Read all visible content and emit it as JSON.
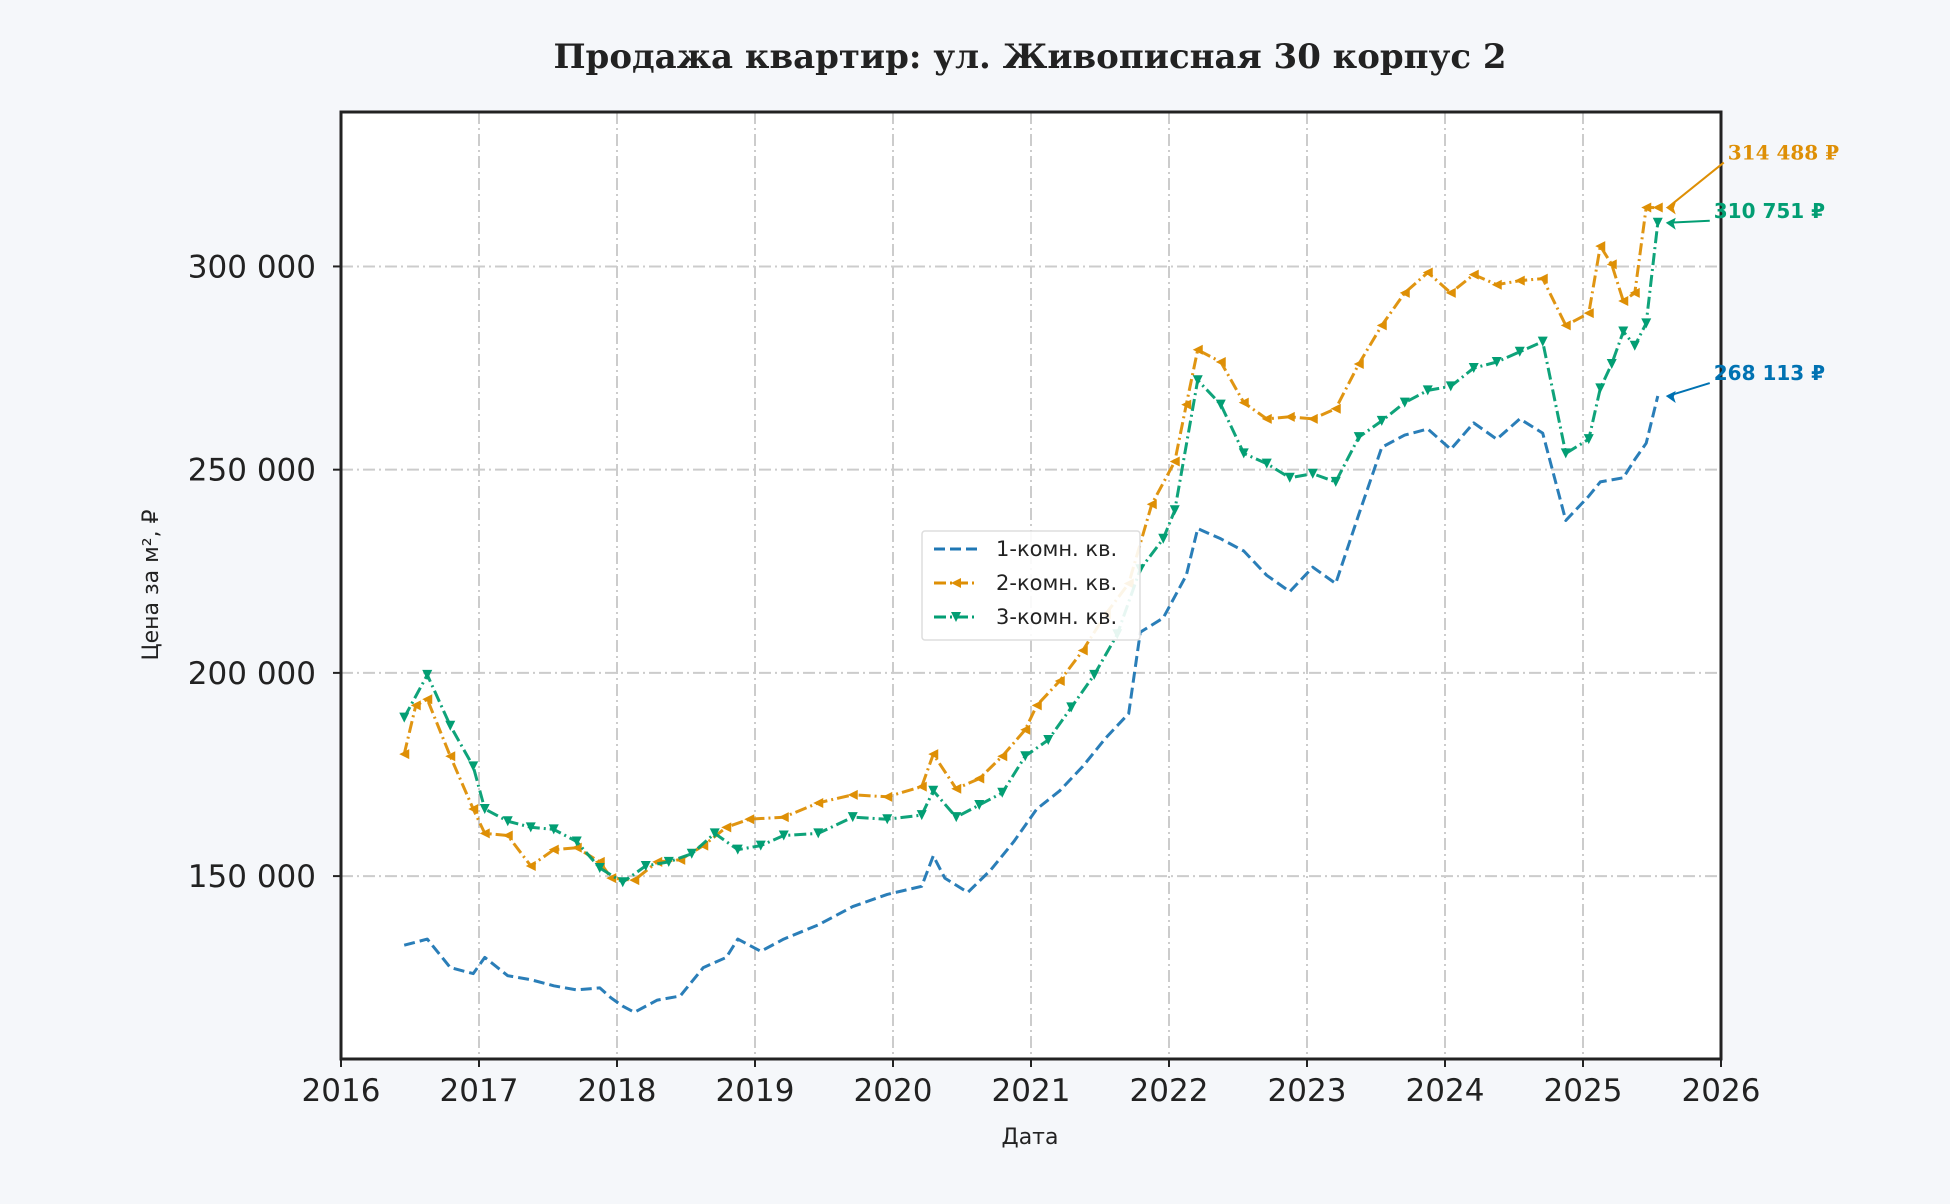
{
  "chart_data": {
    "type": "line",
    "title": "Продажа квартир: ул. Живописная 30 корпус 2",
    "xlabel": "Дата",
    "ylabel": "Цена за м², ₽",
    "xlim": [
      2016,
      2026
    ],
    "ylim": [
      105000,
      338000
    ],
    "x_ticks": [
      "2016",
      "2017",
      "2018",
      "2019",
      "2020",
      "2021",
      "2022",
      "2023",
      "2024",
      "2025",
      "2026"
    ],
    "y_ticks": [
      {
        "value": 150000,
        "label": "150 000"
      },
      {
        "value": 200000,
        "label": "200 000"
      },
      {
        "value": 250000,
        "label": "250 000"
      },
      {
        "value": 300000,
        "label": "300 000"
      }
    ],
    "grid": true,
    "legend_position": "center",
    "series": [
      {
        "name": "1-комн. кв.",
        "color": "#1f77b4",
        "line_style": "dashed",
        "marker": "none",
        "points": [
          [
            "2016-06",
            133000
          ],
          [
            "2016-08",
            134500
          ],
          [
            "2016-10",
            127500
          ],
          [
            "2016-12",
            126000
          ],
          [
            "2017-01",
            130000
          ],
          [
            "2017-03",
            125500
          ],
          [
            "2017-05",
            124500
          ],
          [
            "2017-07",
            123000
          ],
          [
            "2017-09",
            122000
          ],
          [
            "2017-11",
            122500
          ],
          [
            "2017-12",
            120000
          ],
          [
            "2018-01",
            118000
          ],
          [
            "2018-02",
            116500
          ],
          [
            "2018-04",
            119500
          ],
          [
            "2018-06",
            120500
          ],
          [
            "2018-08",
            127500
          ],
          [
            "2018-10",
            130000
          ],
          [
            "2018-11",
            134500
          ],
          [
            "2019-01",
            131500
          ],
          [
            "2019-03",
            134500
          ],
          [
            "2019-06",
            138000
          ],
          [
            "2019-09",
            142500
          ],
          [
            "2019-12",
            145500
          ],
          [
            "2020-03",
            147500
          ],
          [
            "2020-04",
            155000
          ],
          [
            "2020-05",
            149500
          ],
          [
            "2020-07",
            146000
          ],
          [
            "2020-09",
            151500
          ],
          [
            "2020-11",
            158500
          ],
          [
            "2021-01",
            166500
          ],
          [
            "2021-03",
            171000
          ],
          [
            "2021-05",
            177000
          ],
          [
            "2021-07",
            184000
          ],
          [
            "2021-09",
            190000
          ],
          [
            "2021-10",
            210000
          ],
          [
            "2021-12",
            213500
          ],
          [
            "2022-02",
            224000
          ],
          [
            "2022-03",
            235500
          ],
          [
            "2022-05",
            233000
          ],
          [
            "2022-07",
            230000
          ],
          [
            "2022-09",
            224000
          ],
          [
            "2022-11",
            220000
          ],
          [
            "2023-01",
            226000
          ],
          [
            "2023-03",
            222000
          ],
          [
            "2023-05",
            239000
          ],
          [
            "2023-07",
            255500
          ],
          [
            "2023-09",
            258500
          ],
          [
            "2023-11",
            260000
          ],
          [
            "2024-01",
            255000
          ],
          [
            "2024-03",
            261500
          ],
          [
            "2024-05",
            257500
          ],
          [
            "2024-07",
            262500
          ],
          [
            "2024-09",
            259000
          ],
          [
            "2024-11",
            237500
          ],
          [
            "2025-01",
            243500
          ],
          [
            "2025-02",
            247000
          ],
          [
            "2025-04",
            248000
          ],
          [
            "2025-05",
            252500
          ],
          [
            "2025-06",
            256500
          ],
          [
            "2025-07",
            268113
          ]
        ]
      },
      {
        "name": "2-комн. кв.",
        "color": "#de8f05",
        "line_style": "dashdot",
        "marker": "triangle-left",
        "points": [
          [
            "2016-06",
            180000
          ],
          [
            "2016-07",
            192000
          ],
          [
            "2016-08",
            193500
          ],
          [
            "2016-10",
            179500
          ],
          [
            "2016-12",
            166500
          ],
          [
            "2017-01",
            160500
          ],
          [
            "2017-03",
            160000
          ],
          [
            "2017-05",
            152500
          ],
          [
            "2017-07",
            156500
          ],
          [
            "2017-09",
            157000
          ],
          [
            "2017-11",
            153500
          ],
          [
            "2017-12",
            149500
          ],
          [
            "2018-02",
            149000
          ],
          [
            "2018-04",
            153500
          ],
          [
            "2018-06",
            154000
          ],
          [
            "2018-08",
            157500
          ],
          [
            "2018-10",
            162000
          ],
          [
            "2018-12",
            164000
          ],
          [
            "2019-03",
            164500
          ],
          [
            "2019-06",
            168000
          ],
          [
            "2019-09",
            170000
          ],
          [
            "2019-12",
            169500
          ],
          [
            "2020-03",
            172000
          ],
          [
            "2020-04",
            180000
          ],
          [
            "2020-06",
            171500
          ],
          [
            "2020-08",
            174000
          ],
          [
            "2020-10",
            179500
          ],
          [
            "2020-12",
            186000
          ],
          [
            "2021-01",
            192000
          ],
          [
            "2021-03",
            198000
          ],
          [
            "2021-05",
            205500
          ],
          [
            "2021-07",
            214500
          ],
          [
            "2021-09",
            222000
          ],
          [
            "2021-11",
            241500
          ],
          [
            "2022-01",
            252000
          ],
          [
            "2022-02",
            266000
          ],
          [
            "2022-03",
            279500
          ],
          [
            "2022-05",
            276500
          ],
          [
            "2022-07",
            266500
          ],
          [
            "2022-09",
            262500
          ],
          [
            "2022-11",
            263000
          ],
          [
            "2023-01",
            262500
          ],
          [
            "2023-03",
            265000
          ],
          [
            "2023-05",
            276000
          ],
          [
            "2023-07",
            285500
          ],
          [
            "2023-09",
            293500
          ],
          [
            "2023-11",
            298500
          ],
          [
            "2024-01",
            293500
          ],
          [
            "2024-03",
            298000
          ],
          [
            "2024-05",
            295500
          ],
          [
            "2024-07",
            296500
          ],
          [
            "2024-09",
            297000
          ],
          [
            "2024-11",
            285500
          ],
          [
            "2025-01",
            288500
          ],
          [
            "2025-02",
            305000
          ],
          [
            "2025-03",
            300500
          ],
          [
            "2025-04",
            291500
          ],
          [
            "2025-05",
            293500
          ],
          [
            "2025-06",
            314500
          ],
          [
            "2025-07",
            314488
          ]
        ]
      },
      {
        "name": "3-комн. кв.",
        "color": "#029e73",
        "line_style": "dashdot",
        "marker": "triangle-down",
        "points": [
          [
            "2016-06",
            189000
          ],
          [
            "2016-08",
            199500
          ],
          [
            "2016-10",
            187000
          ],
          [
            "2016-12",
            177000
          ],
          [
            "2017-01",
            166500
          ],
          [
            "2017-03",
            163500
          ],
          [
            "2017-05",
            162000
          ],
          [
            "2017-07",
            161500
          ],
          [
            "2017-09",
            158500
          ],
          [
            "2017-11",
            152000
          ],
          [
            "2018-01",
            148500
          ],
          [
            "2018-03",
            152500
          ],
          [
            "2018-05",
            153500
          ],
          [
            "2018-07",
            155500
          ],
          [
            "2018-09",
            160500
          ],
          [
            "2018-11",
            156500
          ],
          [
            "2019-01",
            157500
          ],
          [
            "2019-03",
            160000
          ],
          [
            "2019-06",
            160500
          ],
          [
            "2019-09",
            164500
          ],
          [
            "2019-12",
            164000
          ],
          [
            "2020-03",
            165000
          ],
          [
            "2020-04",
            171000
          ],
          [
            "2020-06",
            164500
          ],
          [
            "2020-08",
            167500
          ],
          [
            "2020-10",
            170500
          ],
          [
            "2020-12",
            179500
          ],
          [
            "2021-02",
            183500
          ],
          [
            "2021-04",
            191500
          ],
          [
            "2021-06",
            199500
          ],
          [
            "2021-08",
            209500
          ],
          [
            "2021-10",
            225500
          ],
          [
            "2021-12",
            233000
          ],
          [
            "2022-01",
            240000
          ],
          [
            "2022-03",
            272000
          ],
          [
            "2022-05",
            266000
          ],
          [
            "2022-07",
            254000
          ],
          [
            "2022-09",
            251500
          ],
          [
            "2022-11",
            248000
          ],
          [
            "2023-01",
            249000
          ],
          [
            "2023-03",
            247000
          ],
          [
            "2023-05",
            258000
          ],
          [
            "2023-07",
            262000
          ],
          [
            "2023-09",
            266500
          ],
          [
            "2023-11",
            269500
          ],
          [
            "2024-01",
            270500
          ],
          [
            "2024-03",
            275000
          ],
          [
            "2024-05",
            276500
          ],
          [
            "2024-07",
            279000
          ],
          [
            "2024-09",
            281500
          ],
          [
            "2024-11",
            254000
          ],
          [
            "2025-01",
            257500
          ],
          [
            "2025-02",
            270000
          ],
          [
            "2025-03",
            276000
          ],
          [
            "2025-04",
            284000
          ],
          [
            "2025-05",
            280500
          ],
          [
            "2025-06",
            286000
          ],
          [
            "2025-07",
            310751
          ]
        ]
      }
    ],
    "end_labels": [
      {
        "series": "2-комн. кв.",
        "text": "314 488 ₽",
        "color": "#de8f05"
      },
      {
        "series": "3-комн. кв.",
        "text": "310 751 ₽",
        "color": "#029e73"
      },
      {
        "series": "1-комн. кв.",
        "text": "268 113 ₽",
        "color": "#0072b2"
      }
    ]
  }
}
